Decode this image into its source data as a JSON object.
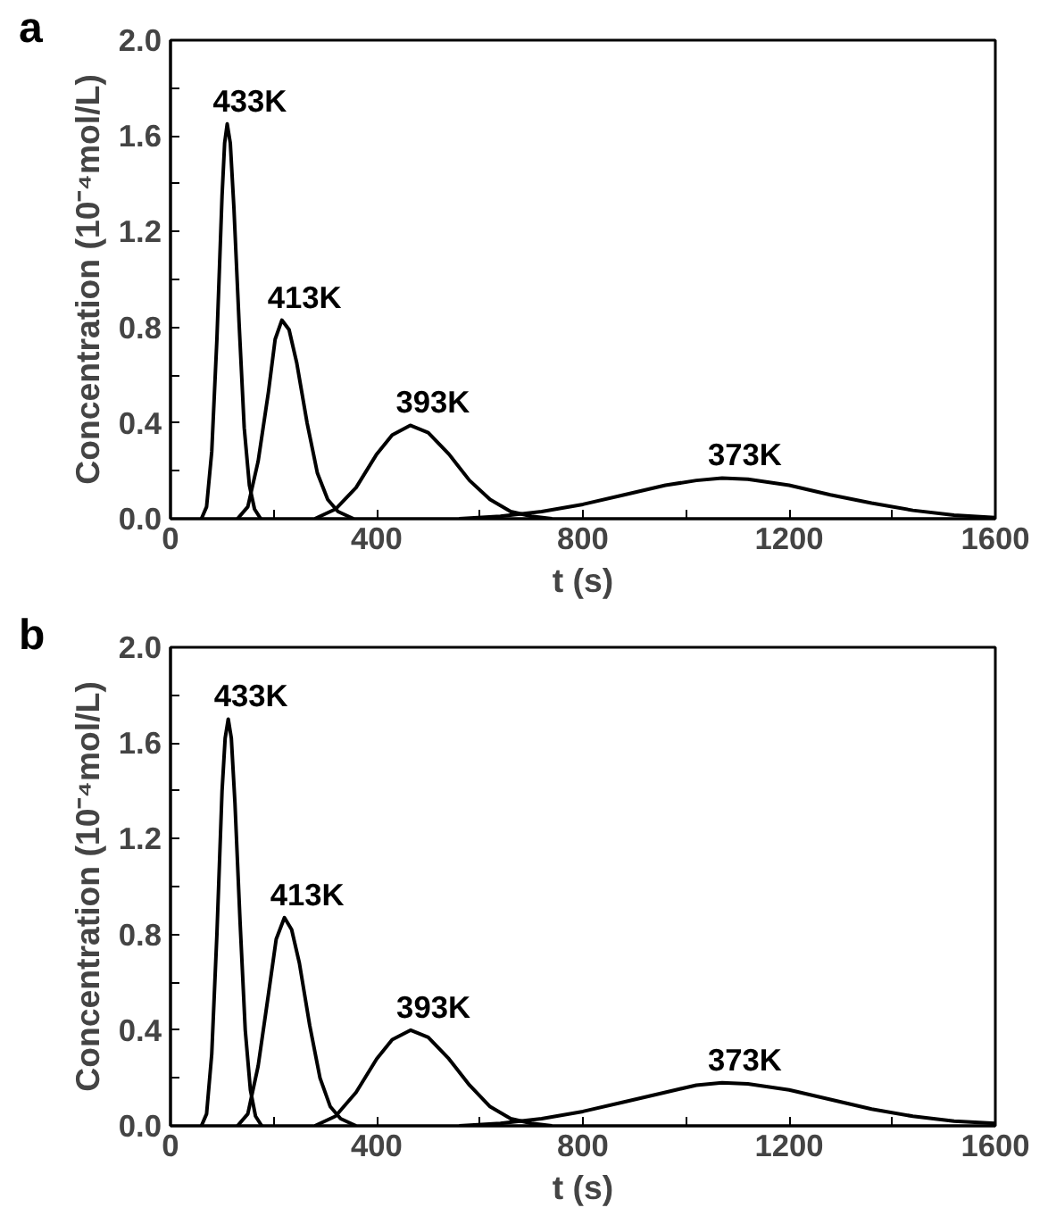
{
  "chart_data": [
    {
      "type": "line",
      "title": "a",
      "xlabel": "t (s)",
      "ylabel": "Concentration (10⁻⁴mol/L)",
      "xlim": [
        0,
        1600
      ],
      "ylim": [
        0,
        2.0
      ],
      "xticks": [
        0,
        {
          "value": 200,
          "label": null
        },
        400,
        {
          "value": 600,
          "label": null
        },
        800,
        {
          "value": 1000,
          "label": null
        },
        1200,
        {
          "value": 1400,
          "label": null
        },
        1600
      ],
      "yticks": [
        {
          "value": 0,
          "label": "0.0"
        },
        {
          "value": 0.2,
          "label": null
        },
        0.4,
        {
          "value": 0.6,
          "label": null
        },
        0.8,
        {
          "value": 1.0,
          "label": null
        },
        1.2,
        {
          "value": 1.4,
          "label": null
        },
        1.6,
        {
          "value": 1.8,
          "label": null
        },
        {
          "value": 2.0,
          "label": "2.0"
        }
      ],
      "grid": false,
      "marker": "none",
      "line_style": "solid",
      "series": [
        {
          "name": "433K",
          "color": "#000000",
          "x": [
            60,
            70,
            80,
            90,
            100,
            105,
            110,
            116,
            123,
            133,
            143,
            153,
            163,
            175
          ],
          "values": [
            0,
            0.05,
            0.28,
            0.75,
            1.35,
            1.57,
            1.65,
            1.57,
            1.3,
            0.82,
            0.38,
            0.14,
            0.04,
            0
          ]
        },
        {
          "name": "413K",
          "color": "#000000",
          "x": [
            130,
            150,
            170,
            190,
            203,
            216,
            230,
            245,
            265,
            285,
            305,
            325,
            355
          ],
          "values": [
            0,
            0.05,
            0.24,
            0.53,
            0.75,
            0.83,
            0.79,
            0.65,
            0.4,
            0.19,
            0.08,
            0.03,
            0
          ]
        },
        {
          "name": "393K",
          "color": "#000000",
          "x": [
            280,
            320,
            360,
            400,
            430,
            465,
            500,
            540,
            580,
            620,
            660,
            700,
            740
          ],
          "values": [
            0,
            0.04,
            0.13,
            0.27,
            0.35,
            0.39,
            0.36,
            0.27,
            0.16,
            0.08,
            0.03,
            0.01,
            0
          ]
        },
        {
          "name": "373K",
          "color": "#000000",
          "x": [
            560,
            640,
            720,
            800,
            880,
            960,
            1020,
            1070,
            1120,
            1200,
            1280,
            1360,
            1440,
            1520,
            1600
          ],
          "values": [
            0,
            0.01,
            0.03,
            0.06,
            0.1,
            0.14,
            0.16,
            0.17,
            0.165,
            0.14,
            0.1,
            0.065,
            0.035,
            0.015,
            0.005
          ]
        }
      ]
    },
    {
      "type": "line",
      "title": "b",
      "xlabel": "t (s)",
      "ylabel": "Concentration (10⁻⁴mol/L)",
      "xlim": [
        0,
        1600
      ],
      "ylim": [
        0,
        2.0
      ],
      "xticks": [
        0,
        {
          "value": 200,
          "label": null
        },
        400,
        {
          "value": 600,
          "label": null
        },
        800,
        {
          "value": 1000,
          "label": null
        },
        1200,
        {
          "value": 1400,
          "label": null
        },
        1600
      ],
      "yticks": [
        {
          "value": 0,
          "label": "0.0"
        },
        {
          "value": 0.2,
          "label": null
        },
        0.4,
        {
          "value": 0.6,
          "label": null
        },
        0.8,
        {
          "value": 1.0,
          "label": null
        },
        1.2,
        {
          "value": 1.4,
          "label": null
        },
        1.6,
        {
          "value": 1.8,
          "label": null
        },
        {
          "value": 2.0,
          "label": "2.0"
        }
      ],
      "grid": false,
      "marker": "none",
      "line_style": "solid",
      "series": [
        {
          "name": "433K",
          "color": "#000000",
          "x": [
            60,
            70,
            80,
            90,
            100,
            106,
            112,
            118,
            125,
            135,
            145,
            155,
            165,
            177
          ],
          "values": [
            0,
            0.05,
            0.3,
            0.8,
            1.4,
            1.62,
            1.7,
            1.62,
            1.35,
            0.85,
            0.4,
            0.15,
            0.04,
            0
          ]
        },
        {
          "name": "413K",
          "color": "#000000",
          "x": [
            130,
            150,
            170,
            190,
            205,
            221,
            235,
            250,
            270,
            290,
            310,
            330,
            360
          ],
          "values": [
            0,
            0.05,
            0.25,
            0.55,
            0.78,
            0.87,
            0.82,
            0.68,
            0.42,
            0.2,
            0.08,
            0.03,
            0
          ]
        },
        {
          "name": "393K",
          "color": "#000000",
          "x": [
            280,
            320,
            360,
            400,
            430,
            466,
            500,
            540,
            580,
            620,
            660,
            700,
            740
          ],
          "values": [
            0,
            0.04,
            0.14,
            0.28,
            0.36,
            0.4,
            0.37,
            0.28,
            0.17,
            0.08,
            0.03,
            0.01,
            0
          ]
        },
        {
          "name": "373K",
          "color": "#000000",
          "x": [
            560,
            640,
            720,
            800,
            880,
            960,
            1020,
            1070,
            1120,
            1200,
            1280,
            1360,
            1440,
            1520,
            1600
          ],
          "values": [
            0,
            0.01,
            0.03,
            0.06,
            0.1,
            0.14,
            0.17,
            0.18,
            0.175,
            0.15,
            0.11,
            0.07,
            0.04,
            0.02,
            0.01
          ]
        }
      ]
    }
  ]
}
